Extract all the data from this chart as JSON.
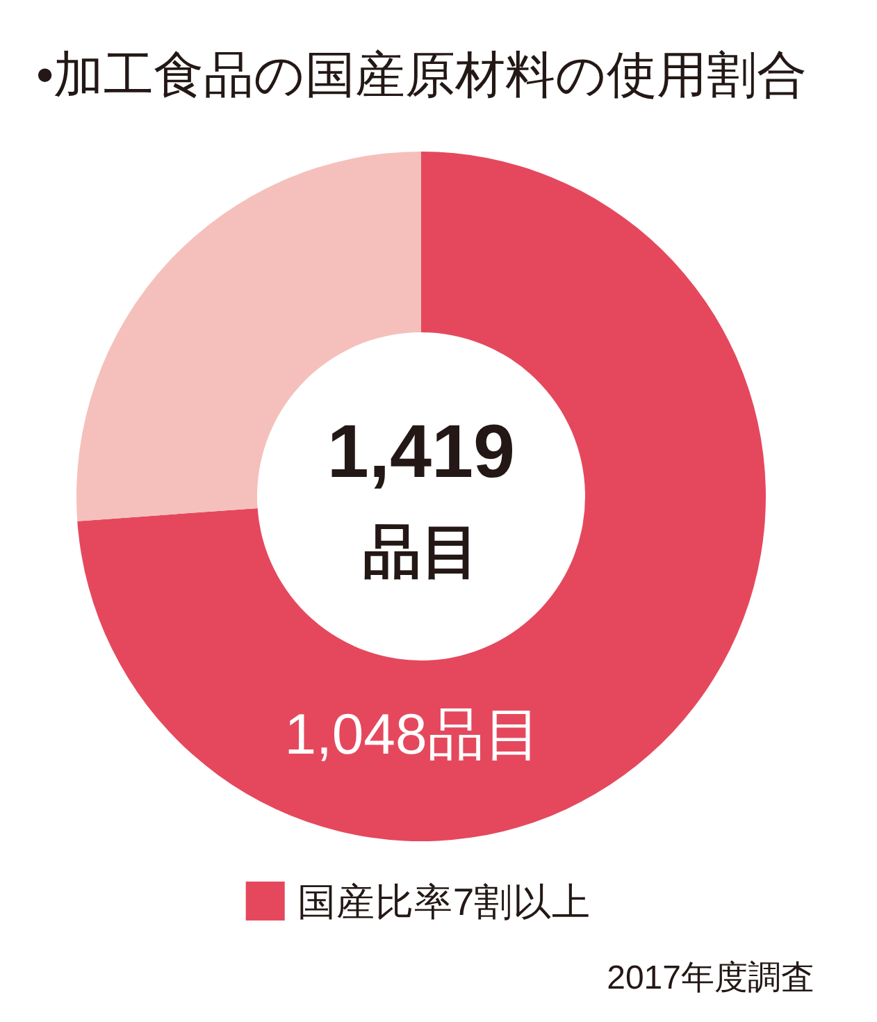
{
  "chart_data": {
    "type": "donut",
    "title": "•加工食品の国産原材料の使用割合",
    "categories": [
      "国産比率7割以上",
      null
    ],
    "values": [
      1048,
      371
    ],
    "colors": [
      "#e5485d",
      "#f5c0bb"
    ],
    "value_labels": [
      "1,048品目",
      null
    ],
    "annotations": [
      "1,419\n品目",
      "2017年度調査"
    ],
    "legend": "bottom"
  }
}
